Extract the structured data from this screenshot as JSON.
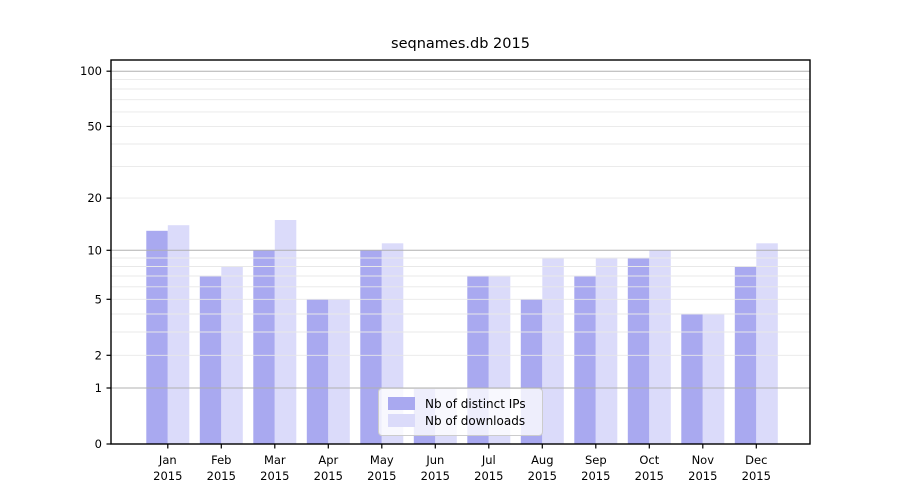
{
  "chart_data": {
    "type": "bar",
    "title": "seqnames.db 2015",
    "categories": [
      "Jan 2015",
      "Feb 2015",
      "Mar 2015",
      "Apr 2015",
      "May 2015",
      "Jun 2015",
      "Jul 2015",
      "Aug 2015",
      "Sep 2015",
      "Oct 2015",
      "Nov 2015",
      "Dec 2015"
    ],
    "series": [
      {
        "name": "Nb of distinct IPs",
        "color": "#a9a9f0",
        "values": [
          13,
          7,
          10,
          5,
          10,
          1,
          7,
          5,
          7,
          9,
          4,
          8
        ]
      },
      {
        "name": "Nb of downloads",
        "color": "#dbdbfa",
        "values": [
          14,
          8,
          15,
          5,
          11,
          1,
          7,
          9,
          9,
          10,
          4,
          11
        ]
      }
    ],
    "yscale": "log1p",
    "ylim": [
      0,
      115
    ],
    "yticks": [
      0,
      1,
      2,
      5,
      10,
      20,
      50,
      100
    ],
    "major_grid_values": [
      1,
      10,
      100
    ],
    "minor_grid_values": [
      2,
      3,
      4,
      5,
      6,
      7,
      8,
      9,
      20,
      30,
      40,
      50,
      60,
      70,
      80,
      90
    ],
    "grid_major_color": "#b0b0b0",
    "grid_minor_color": "#e8e8e8",
    "frame_color": "#000000",
    "legend_position": "bottom-center"
  }
}
